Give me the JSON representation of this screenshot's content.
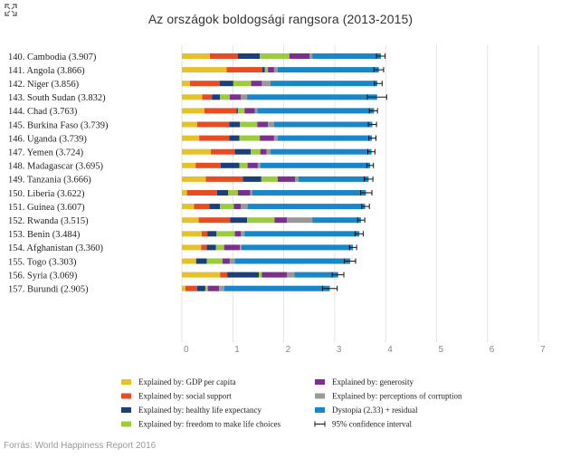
{
  "chart_data": {
    "type": "bar",
    "stacked": true,
    "orientation": "horizontal",
    "title": "Az országok boldogsági rangsora (2013-2015)",
    "xlim": [
      0,
      7
    ],
    "x_ticks": [
      "0",
      "1",
      "2",
      "3",
      "4",
      "5",
      "6",
      "7"
    ],
    "categories": [
      "140. Cambodia (3.907)",
      "141. Angola (3.866)",
      "142. Niger (3.856)",
      "143. South Sudan (3.832)",
      "144. Chad (3.763)",
      "145. Burkina Faso (3.739)",
      "146. Uganda (3.739)",
      "147. Yemen (3.724)",
      "148. Madagascar (3.695)",
      "149. Tanzania (3.666)",
      "150. Liberia (3.622)",
      "151. Guinea (3.607)",
      "152. Rwanda (3.515)",
      "153. Benin (3.484)",
      "154. Afghanistan (3.360)",
      "155. Togo (3.303)",
      "156. Syria (3.069)",
      "157. Burundi (2.905)"
    ],
    "totals": [
      3.907,
      3.866,
      3.856,
      3.832,
      3.763,
      3.739,
      3.739,
      3.724,
      3.695,
      3.666,
      3.622,
      3.607,
      3.515,
      3.484,
      3.36,
      3.303,
      3.069,
      2.905
    ],
    "ci_low": [
      3.82,
      3.77,
      3.78,
      3.64,
      3.68,
      3.66,
      3.67,
      3.65,
      3.63,
      3.58,
      3.51,
      3.53,
      3.45,
      3.4,
      3.29,
      3.19,
      2.95,
      2.76
    ],
    "ci_high": [
      3.99,
      3.96,
      3.93,
      4.02,
      3.84,
      3.82,
      3.81,
      3.79,
      3.76,
      3.75,
      3.73,
      3.68,
      3.59,
      3.56,
      3.43,
      3.41,
      3.18,
      3.05
    ],
    "series": [
      {
        "name": "Explained by: GDP per capita",
        "color": "#e5c12a",
        "values": [
          0.55,
          0.88,
          0.16,
          0.4,
          0.44,
          0.3,
          0.34,
          0.57,
          0.27,
          0.47,
          0.1,
          0.24,
          0.33,
          0.39,
          0.38,
          0.28,
          0.75,
          0.07
        ]
      },
      {
        "name": "Explained by: social support",
        "color": "#e84c22",
        "values": [
          0.55,
          0.7,
          0.58,
          0.19,
          0.63,
          0.63,
          0.59,
          0.47,
          0.49,
          0.73,
          0.59,
          0.3,
          0.62,
          0.11,
          0.11,
          0.0,
          0.14,
          0.23
        ]
      },
      {
        "name": "Explained by: healthy life expectancy",
        "color": "#1a3f7a",
        "values": [
          0.43,
          0.05,
          0.27,
          0.16,
          0.03,
          0.21,
          0.2,
          0.31,
          0.37,
          0.36,
          0.22,
          0.21,
          0.33,
          0.18,
          0.18,
          0.21,
          0.62,
          0.16
        ]
      },
      {
        "name": "Explained by: freedom to make life choices",
        "color": "#9ccb3b",
        "values": [
          0.58,
          0.06,
          0.35,
          0.19,
          0.13,
          0.34,
          0.4,
          0.19,
          0.16,
          0.32,
          0.19,
          0.27,
          0.54,
          0.36,
          0.16,
          0.31,
          0.06,
          0.05
        ]
      },
      {
        "name": "Explained by: generosity",
        "color": "#7b2f8f",
        "values": [
          0.4,
          0.12,
          0.21,
          0.22,
          0.2,
          0.21,
          0.28,
          0.12,
          0.2,
          0.34,
          0.24,
          0.14,
          0.24,
          0.12,
          0.31,
          0.14,
          0.49,
          0.22
        ]
      },
      {
        "name": "Explained by: perceptions of corruption",
        "color": "#999999",
        "values": [
          0.05,
          0.07,
          0.17,
          0.12,
          0.05,
          0.12,
          0.07,
          0.08,
          0.05,
          0.07,
          0.04,
          0.13,
          0.5,
          0.07,
          0.03,
          0.1,
          0.15,
          0.1
        ]
      },
      {
        "name": "Dystopia (2.33) + residual",
        "color": "#1787c9",
        "values": [
          1.347,
          1.986,
          2.096,
          2.552,
          2.293,
          1.929,
          1.849,
          1.984,
          2.155,
          1.376,
          2.232,
          2.307,
          0.955,
          2.254,
          2.19,
          2.263,
          0.859,
          2.075
        ]
      }
    ],
    "ci_label": "95% confidence interval",
    "source": "Forrás: World Happiness Report 2016"
  }
}
